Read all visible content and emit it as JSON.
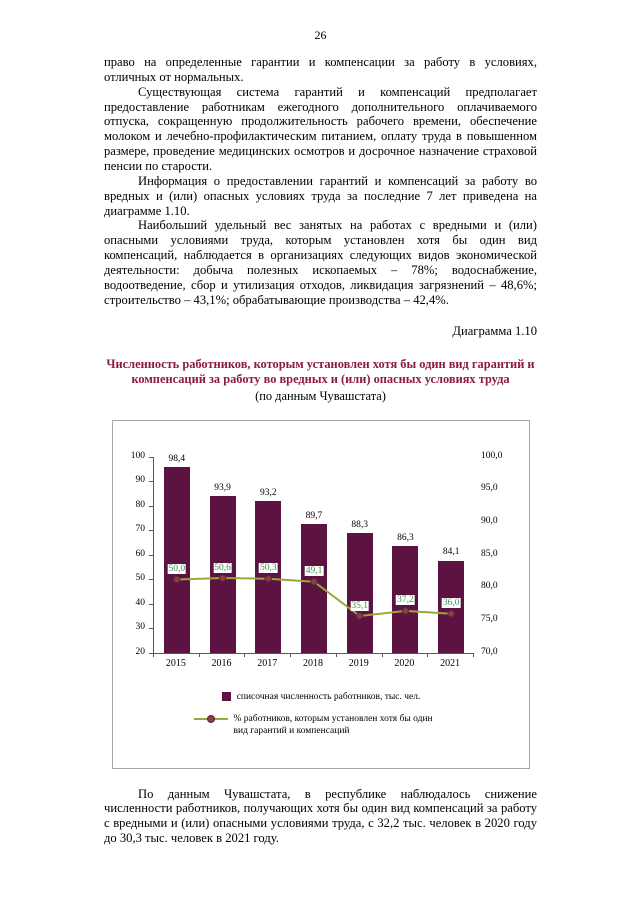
{
  "page": {
    "number": "26"
  },
  "paragraphs": [
    "право на определенные гарантии и компенсации за работу в условиях, отличных от нормальных.",
    "Существующая система гарантий и компенсаций предполагает предоставление работникам ежегодного дополнительного оплачиваемого отпуска, сокращенную продолжительность рабочего времени, обеспечение молоком и лечебно-профилактическим питанием, оплату труда в повышенном размере, проведение медицинских осмотров и досрочное назначение страховой пенсии по старости.",
    "Информация о предоставлении гарантий и компенсаций за работу во вредных и (или) опасных условиях труда за последние 7 лет приведена на диаграмме 1.10.",
    "Наибольший удельный вес занятых на работах с вредными и (или) опасными условиями труда, которым установлен хотя бы один вид компенсаций, наблюдается в организациях следующих видов экономической деятельности: добыча полезных ископаемых – 78%; водоснабжение, водоотведение, сбор и утилизация отходов, ликвидация загрязнений – 48,6%; строительство – 43,1%; обрабатывающие производства – 42,4%.",
    "По данным Чувашстата, в республике наблюдалось снижение численности работников, получающих хотя бы один вид компенсаций за работу с вредными и (или) опасными условиями труда, с 32,2 тыс. человек в 2020 году до 30,3 тыс. человек в 2021 году."
  ],
  "diagram_label": "Диаграмма 1.10",
  "chart": {
    "title": "Численность работников, которым установлен хотя бы один вид гарантий и компенсаций за работу во вредных и (или) опасных условиях труда",
    "subtitle": "(по данным Чувашстата)",
    "title_color": "#8e1b3c",
    "legend": [
      "списочная численность работников, тыс. чел.",
      "% работников, которым установлен хотя бы один вид гарантий и компенсаций"
    ]
  },
  "chart_data": {
    "type": "bar+line",
    "title": "Численность работников, которым установлен хотя бы один вид гарантий и компенсаций за работу во вредных и (или) опасных условиях труда (по данным Чувашстата)",
    "categories": [
      "2015",
      "2016",
      "2017",
      "2018",
      "2019",
      "2020",
      "2021"
    ],
    "series": [
      {
        "name": "списочная численность работников, тыс. чел.",
        "type": "bar",
        "axis": "right",
        "color": "#5c1342",
        "values": [
          98.4,
          93.9,
          93.2,
          89.7,
          88.3,
          86.3,
          84.1
        ],
        "labels": [
          "98,4",
          "93,9",
          "93,2",
          "89,7",
          "88,3",
          "86,3",
          "84,1"
        ]
      },
      {
        "name": "% работников, которым установлен хотя бы один вид гарантий и компенсаций",
        "type": "line",
        "axis": "left",
        "color": "#9aa838",
        "marker_color": "#8e3b4a",
        "label_color": "#3f9150",
        "values": [
          50.0,
          50.6,
          50.3,
          49.1,
          35.1,
          37.2,
          36.0
        ],
        "labels": [
          "50,0",
          "50,6",
          "50,3",
          "49,1",
          "35,1",
          "37,2",
          "36,0"
        ]
      }
    ],
    "left_axis": {
      "min": 20,
      "max": 100,
      "ticks": [
        100,
        90,
        80,
        70,
        60,
        50,
        40,
        30,
        20
      ]
    },
    "right_axis": {
      "min": 70,
      "max": 100,
      "ticks": [
        {
          "value": 100,
          "label": "100,0"
        },
        {
          "value": 95,
          "label": "95,0"
        },
        {
          "value": 90,
          "label": "90,0"
        },
        {
          "value": 85,
          "label": "85,0"
        },
        {
          "value": 80,
          "label": "80,0"
        },
        {
          "value": 75,
          "label": "75,0"
        },
        {
          "value": 70,
          "label": "70,0"
        }
      ]
    },
    "grid": false,
    "legend_position": "bottom"
  }
}
